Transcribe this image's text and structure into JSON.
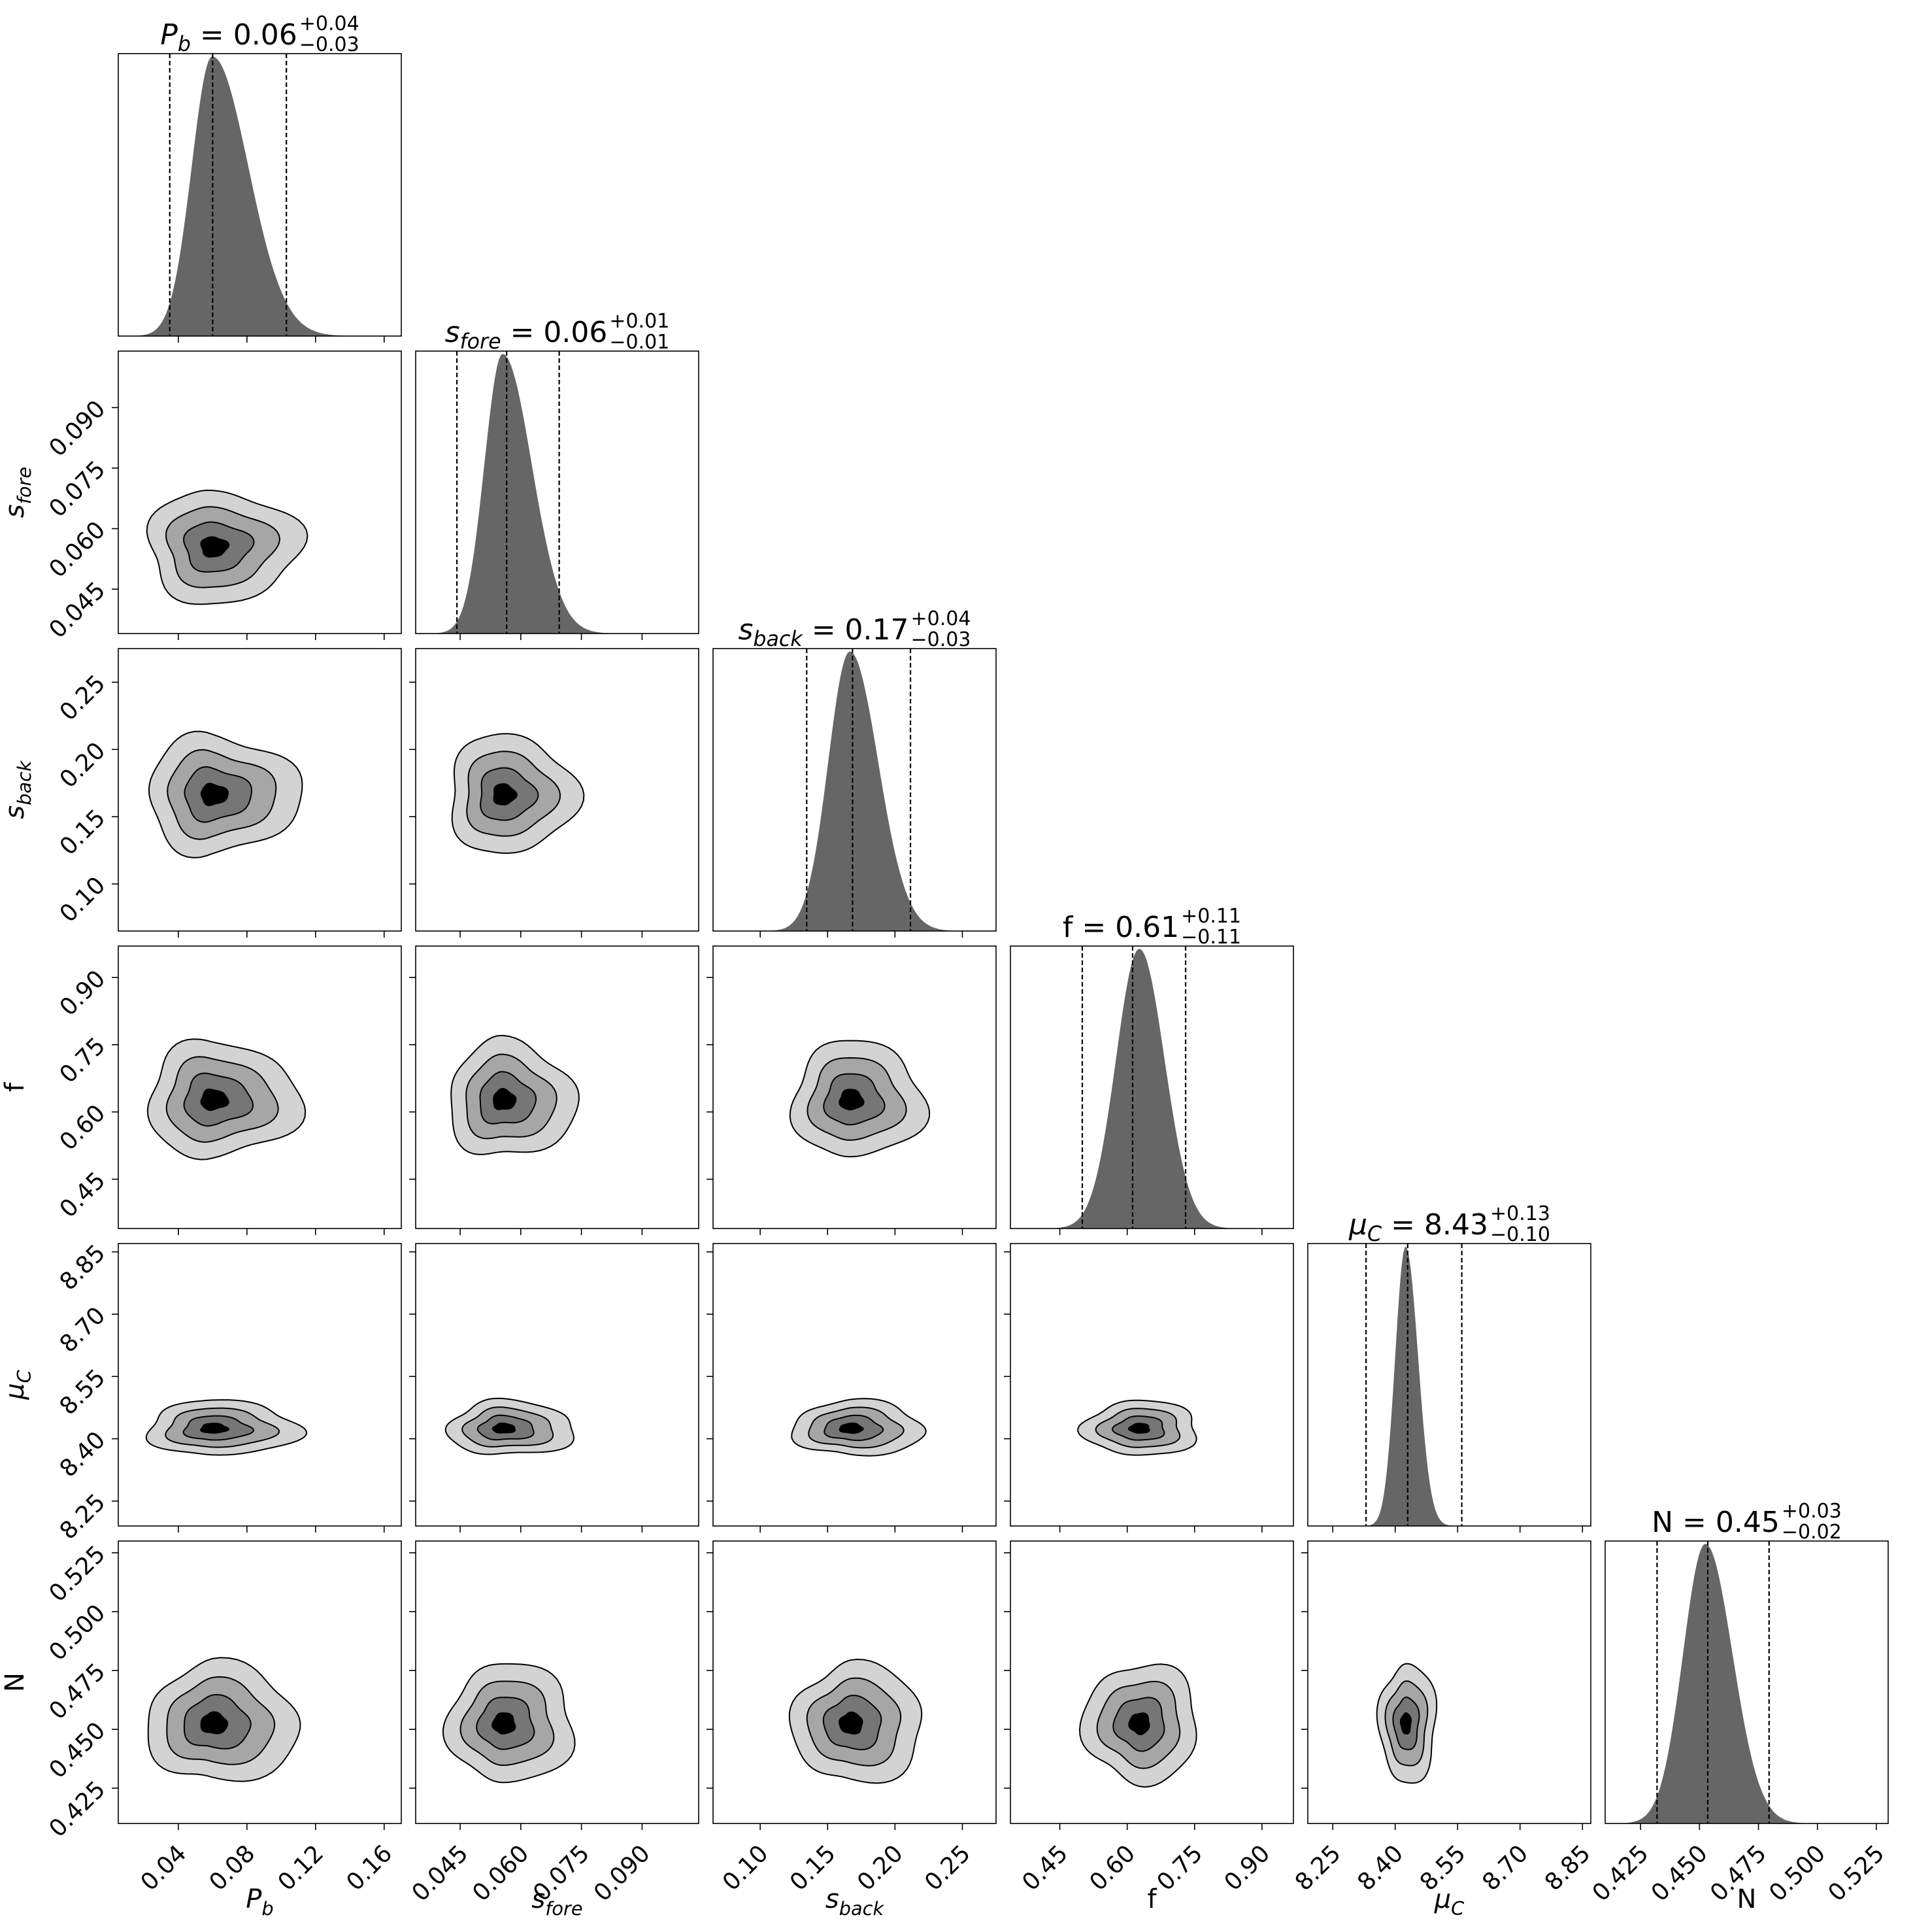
{
  "colors": {
    "hist_fill": "#666666",
    "level_1": "#d3d3d3",
    "level_2": "#a6a6a6",
    "level_3": "#767676",
    "level_4": "#000000",
    "axis": "#000000",
    "background": "#ffffff"
  },
  "chart_data": {
    "type": "corner",
    "parameters": [
      {
        "key": "Pb",
        "label": "P",
        "label_sub": "b",
        "label_italic": true,
        "range": [
          0.005,
          0.17
        ],
        "ticks": [
          0.04,
          0.08,
          0.12,
          0.16
        ],
        "tick_labels": [
          "0.04",
          "0.08",
          "0.12",
          "0.16"
        ],
        "median": 0.06,
        "lower": 0.035,
        "upper": 0.103,
        "sigma_lo": 0.012,
        "sigma_hi": 0.021,
        "pmode": 0.0598,
        "title": {
          "name": "P",
          "sub": "b",
          "italic": true,
          "value": "0.06",
          "plus": "+0.04",
          "minus": "−0.03"
        }
      },
      {
        "key": "sfore",
        "label": "s",
        "label_sub": "fore",
        "label_italic": true,
        "range": [
          0.034,
          0.104
        ],
        "ticks": [
          0.045,
          0.06,
          0.075,
          0.09
        ],
        "tick_labels": [
          "0.045",
          "0.060",
          "0.075",
          "0.090"
        ],
        "median": 0.0565,
        "lower": 0.0442,
        "upper": 0.0695,
        "sigma_lo": 0.0045,
        "sigma_hi": 0.0072,
        "pmode": 0.0555,
        "title": {
          "name": "s",
          "sub": "fore",
          "italic": true,
          "value": "0.06",
          "plus": "+0.01",
          "minus": "−0.01"
        }
      },
      {
        "key": "sback",
        "label": "s",
        "label_sub": "back",
        "label_italic": true,
        "range": [
          0.065,
          0.275
        ],
        "ticks": [
          0.1,
          0.15,
          0.2,
          0.25
        ],
        "tick_labels": [
          "0.10",
          "0.15",
          "0.20",
          "0.25"
        ],
        "median": 0.1685,
        "lower": 0.1345,
        "upper": 0.2115,
        "sigma_lo": 0.016,
        "sigma_hi": 0.021,
        "pmode": 0.1665,
        "title": {
          "name": "s",
          "sub": "back",
          "italic": true,
          "value": "0.17",
          "plus": "+0.04",
          "minus": "−0.03"
        }
      },
      {
        "key": "f",
        "label": "f",
        "label_sub": "",
        "label_italic": false,
        "range": [
          0.34,
          0.97
        ],
        "ticks": [
          0.45,
          0.6,
          0.75,
          0.9
        ],
        "tick_labels": [
          "0.45",
          "0.60",
          "0.75",
          "0.90"
        ],
        "median": 0.612,
        "lower": 0.5,
        "upper": 0.73,
        "sigma_lo": 0.052,
        "sigma_hi": 0.056,
        "pmode": 0.627,
        "title": {
          "name": "f",
          "sub": "",
          "italic": false,
          "value": "0.61",
          "plus": "+0.11",
          "minus": "−0.11"
        }
      },
      {
        "key": "muC",
        "label": "μ",
        "label_sub": "C",
        "label_italic": true,
        "range": [
          8.19,
          8.87
        ],
        "ticks": [
          8.25,
          8.4,
          8.55,
          8.7,
          8.85
        ],
        "tick_labels": [
          "8.25",
          "8.40",
          "8.55",
          "8.70",
          "8.85"
        ],
        "median": 8.43,
        "lower": 8.33,
        "upper": 8.56,
        "sigma_lo": 0.025,
        "sigma_hi": 0.03,
        "pmode": 8.425,
        "title": {
          "name": "μ",
          "sub": "C",
          "italic": true,
          "value": "8.43",
          "plus": "+0.13",
          "minus": "−0.10"
        }
      },
      {
        "key": "N",
        "label": "N",
        "label_sub": "",
        "label_italic": false,
        "range": [
          0.41,
          0.53
        ],
        "ticks": [
          0.425,
          0.45,
          0.475,
          0.5,
          0.525
        ],
        "tick_labels": [
          "0.425",
          "0.450",
          "0.475",
          "0.500",
          "0.525"
        ],
        "median": 0.4535,
        "lower": 0.432,
        "upper": 0.4795,
        "sigma_lo": 0.0095,
        "sigma_hi": 0.0115,
        "pmode": 0.4525,
        "title": {
          "name": "N",
          "sub": "",
          "italic": false,
          "value": "0.45",
          "plus": "+0.03",
          "minus": "−0.02"
        }
      }
    ],
    "contour_levels": 4,
    "grid": false,
    "legend": "none"
  }
}
